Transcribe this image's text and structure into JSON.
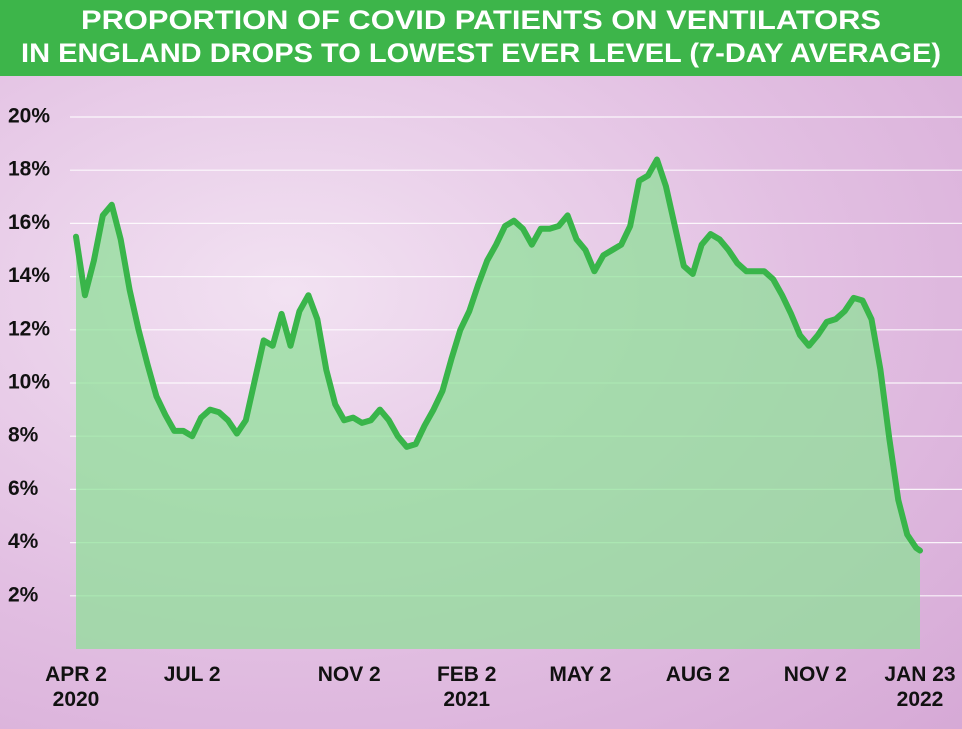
{
  "chart_data": {
    "type": "line",
    "title": [
      "PROPORTION OF COVID PATIENTS ON VENTILATORS",
      "IN ENGLAND DROPS TO LOWEST EVER LEVEL (7-DAY AVERAGE)"
    ],
    "x": [
      "2020-04-02",
      "2020-04-09",
      "2020-04-16",
      "2020-04-23",
      "2020-04-30",
      "2020-05-07",
      "2020-05-14",
      "2020-05-21",
      "2020-05-28",
      "2020-06-04",
      "2020-06-11",
      "2020-06-18",
      "2020-06-25",
      "2020-07-02",
      "2020-07-09",
      "2020-07-16",
      "2020-07-23",
      "2020-07-30",
      "2020-08-06",
      "2020-08-13",
      "2020-08-20",
      "2020-08-27",
      "2020-09-03",
      "2020-09-10",
      "2020-09-17",
      "2020-09-24",
      "2020-10-01",
      "2020-10-08",
      "2020-10-15",
      "2020-10-22",
      "2020-10-29",
      "2020-11-05",
      "2020-11-12",
      "2020-11-19",
      "2020-11-26",
      "2020-12-03",
      "2020-12-10",
      "2020-12-17",
      "2020-12-24",
      "2020-12-31",
      "2021-01-07",
      "2021-01-14",
      "2021-01-21",
      "2021-01-28",
      "2021-02-04",
      "2021-02-11",
      "2021-02-18",
      "2021-02-25",
      "2021-03-04",
      "2021-03-11",
      "2021-03-18",
      "2021-03-25",
      "2021-04-01",
      "2021-04-08",
      "2021-04-15",
      "2021-04-22",
      "2021-04-29",
      "2021-05-06",
      "2021-05-13",
      "2021-05-20",
      "2021-05-27",
      "2021-06-03",
      "2021-06-10",
      "2021-06-17",
      "2021-06-24",
      "2021-07-01",
      "2021-07-08",
      "2021-07-15",
      "2021-07-22",
      "2021-07-29",
      "2021-08-05",
      "2021-08-12",
      "2021-08-19",
      "2021-08-26",
      "2021-09-02",
      "2021-09-09",
      "2021-09-16",
      "2021-09-23",
      "2021-09-30",
      "2021-10-07",
      "2021-10-14",
      "2021-10-21",
      "2021-10-28",
      "2021-11-04",
      "2021-11-11",
      "2021-11-18",
      "2021-11-25",
      "2021-12-02",
      "2021-12-09",
      "2021-12-16",
      "2021-12-23",
      "2021-12-30",
      "2022-01-06",
      "2022-01-13",
      "2022-01-20",
      "2022-01-23"
    ],
    "series": [
      {
        "color": "#39b54a",
        "values": [
          15.5,
          13.3,
          14.6,
          16.3,
          16.7,
          15.4,
          13.5,
          12.0,
          10.7,
          9.5,
          8.8,
          8.2,
          8.2,
          8.0,
          8.7,
          9.0,
          8.9,
          8.6,
          8.1,
          8.6,
          10.1,
          11.6,
          11.4,
          12.6,
          11.4,
          12.7,
          13.3,
          12.4,
          10.5,
          9.2,
          8.6,
          8.7,
          8.5,
          8.6,
          9.0,
          8.6,
          8.0,
          7.6,
          7.7,
          8.4,
          9.0,
          9.7,
          10.9,
          12.0,
          12.7,
          13.7,
          14.6,
          15.2,
          15.9,
          16.1,
          15.8,
          15.2,
          15.8,
          15.8,
          15.9,
          16.3,
          15.4,
          15.0,
          14.2,
          14.8,
          15.0,
          15.2,
          15.9,
          17.6,
          17.8,
          18.4,
          17.4,
          15.9,
          14.4,
          14.1,
          15.2,
          15.6,
          15.4,
          15.0,
          14.5,
          14.2,
          14.2,
          14.2,
          13.9,
          13.3,
          12.6,
          11.8,
          11.4,
          11.8,
          12.3,
          12.4,
          12.7,
          13.2,
          13.1,
          12.4,
          10.5,
          7.9,
          5.6,
          4.3,
          3.8,
          3.7
        ]
      }
    ],
    "xlim": [
      "2020-04-02",
      "2022-01-23"
    ],
    "xticks": [
      {
        "value": "2020-04-02",
        "label": "APR 2\n2020"
      },
      {
        "value": "2020-07-02",
        "label": "JUL 2"
      },
      {
        "value": "2020-11-02",
        "label": "NOV 2"
      },
      {
        "value": "2021-02-02",
        "label": "FEB 2\n2021"
      },
      {
        "value": "2021-05-02",
        "label": "MAY 2"
      },
      {
        "value": "2021-08-02",
        "label": "AUG 2"
      },
      {
        "value": "2021-11-02",
        "label": "NOV 2"
      },
      {
        "value": "2022-01-23",
        "label": "JAN 23\n2022"
      }
    ],
    "ylim": [
      0,
      20
    ],
    "yticks": [
      {
        "value": 2,
        "label": "2%"
      },
      {
        "value": 4,
        "label": "4%"
      },
      {
        "value": 6,
        "label": "6%"
      },
      {
        "value": 8,
        "label": "8%"
      },
      {
        "value": 10,
        "label": "10%"
      },
      {
        "value": 12,
        "label": "12%"
      },
      {
        "value": 14,
        "label": "14%"
      },
      {
        "value": 16,
        "label": "16%"
      },
      {
        "value": 18,
        "label": "18%"
      },
      {
        "value": 20,
        "label": "20%"
      }
    ],
    "grid": true
  }
}
